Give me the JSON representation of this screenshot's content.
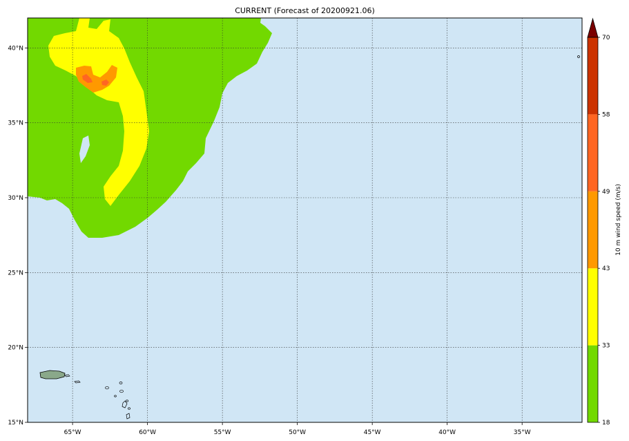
{
  "title": "CURRENT (Forecast of 20200921.06)",
  "map": {
    "lon_range": [
      -68,
      -31
    ],
    "lat_range": [
      15,
      42
    ],
    "ocean_color": "#d0e6f5",
    "grid": true,
    "lon_ticks": [
      {
        "value": -65,
        "label": "65°W"
      },
      {
        "value": -60,
        "label": "60°W"
      },
      {
        "value": -55,
        "label": "55°W"
      },
      {
        "value": -50,
        "label": "50°W"
      },
      {
        "value": -45,
        "label": "45°W"
      },
      {
        "value": -40,
        "label": "40°W"
      },
      {
        "value": -35,
        "label": "35°W"
      }
    ],
    "lat_ticks": [
      {
        "value": 15,
        "label": "15°N"
      },
      {
        "value": 20,
        "label": "20°N"
      },
      {
        "value": 25,
        "label": "25°N"
      },
      {
        "value": 30,
        "label": "30°N"
      },
      {
        "value": 35,
        "label": "35°N"
      },
      {
        "value": 40,
        "label": "40°N"
      }
    ]
  },
  "colorbar": {
    "label": "10 m wind speed (m/s)",
    "levels": [
      18,
      33,
      43,
      49,
      58,
      70
    ],
    "level_labels": [
      "18",
      "33",
      "43",
      "49",
      "58",
      "70"
    ],
    "colors": [
      "#72d900",
      "#ffff00",
      "#ff9900",
      "#ff6622",
      "#cc3300"
    ],
    "extend_color": "#7a0000",
    "extend": "max"
  },
  "wind_field": {
    "level_18_33_color": "#72d900",
    "level_33_43_color": "#ffff00",
    "level_43_49_color": "#ff9900",
    "level_49_58_color": "#ff6622"
  }
}
